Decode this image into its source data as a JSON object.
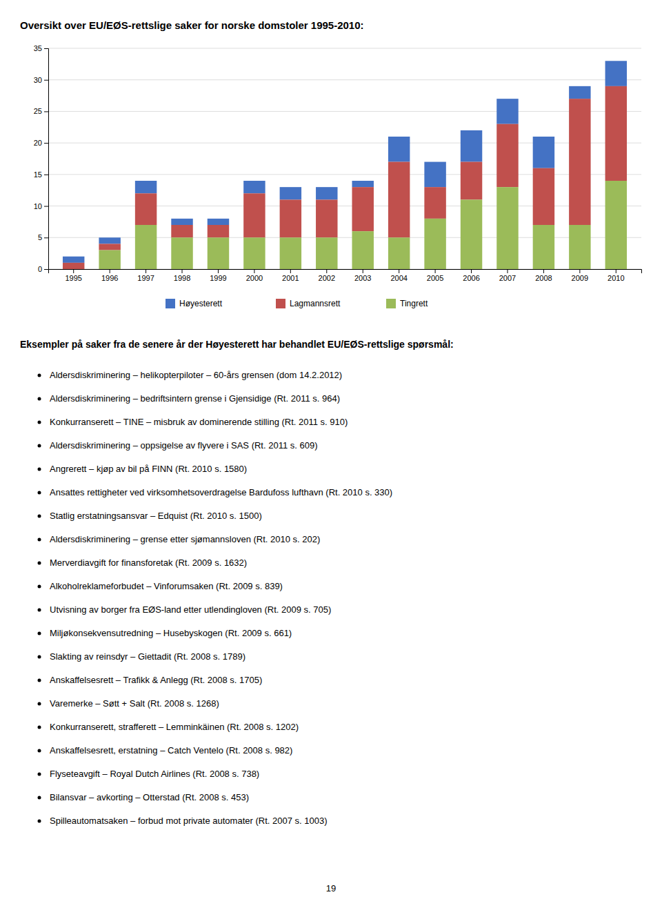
{
  "chart_data": {
    "type": "bar",
    "stacked": true,
    "title": "Oversikt over EU/EØS-rettslige saker for norske domstoler 1995-2010:",
    "categories": [
      "1995",
      "1996",
      "1997",
      "1998",
      "1999",
      "2000",
      "2001",
      "2002",
      "2003",
      "2004",
      "2005",
      "2006",
      "2007",
      "2008",
      "2009",
      "2010"
    ],
    "series": [
      {
        "name": "Høyesterett",
        "color": "#4472C4",
        "values": [
          1,
          1,
          2,
          1,
          1,
          2,
          2,
          2,
          1,
          4,
          4,
          5,
          4,
          5,
          2,
          4
        ]
      },
      {
        "name": "Lagmannsrett",
        "color": "#C0504D",
        "values": [
          1,
          1,
          5,
          2,
          2,
          7,
          6,
          6,
          7,
          12,
          5,
          6,
          10,
          9,
          20,
          15
        ]
      },
      {
        "name": "Tingrett",
        "color": "#9BBB59",
        "values": [
          0,
          3,
          7,
          5,
          5,
          5,
          5,
          5,
          6,
          5,
          8,
          11,
          13,
          7,
          7,
          14
        ]
      }
    ],
    "ylim": [
      0,
      35
    ],
    "yticks": [
      0,
      5,
      10,
      15,
      20,
      25,
      30,
      35
    ],
    "grid": true,
    "legend": "bottom"
  },
  "section_title": "Eksempler på saker fra de senere år der Høyesterett har behandlet EU/EØS-rettslige spørsmål:",
  "bullet_items": [
    "Aldersdiskriminering – helikopterpiloter – 60-års grensen (dom 14.2.2012)",
    "Aldersdiskriminering – bedriftsintern grense i Gjensidige (Rt. 2011 s. 964)",
    "Konkurranserett – TINE – misbruk av dominerende stilling  (Rt. 2011 s. 910)",
    "Aldersdiskriminering – oppsigelse av flyvere i SAS (Rt. 2011 s. 609)",
    "Angrerett – kjøp av bil på FINN (Rt. 2010 s. 1580)",
    "Ansattes rettigheter ved virksomhetsoverdragelse Bardufoss lufthavn (Rt. 2010 s. 330)",
    "Statlig erstatningsansvar – Edquist (Rt. 2010 s. 1500)",
    "Aldersdiskriminering – grense etter sjømannsloven (Rt. 2010 s. 202)",
    "Merverdiavgift for finansforetak (Rt. 2009 s. 1632)",
    "Alkoholreklameforbudet – Vinforumsaken (Rt. 2009 s. 839)",
    "Utvisning av borger fra EØS-land etter utlendingloven (Rt. 2009 s. 705)",
    "Miljøkonsekvensutredning – Husebyskogen (Rt. 2009 s. 661)",
    "Slakting av reinsdyr – Giettadit (Rt. 2008 s. 1789)",
    "Anskaffelsesrett – Trafikk & Anlegg (Rt. 2008 s. 1705)",
    "Varemerke – Søtt + Salt (Rt. 2008 s. 1268)",
    "Konkurranserett, strafferett – Lemminkäinen (Rt. 2008 s. 1202)",
    "Anskaffelsesrett, erstatning – Catch Ventelo (Rt. 2008 s. 982)",
    "Flyseteavgift – Royal Dutch Airlines (Rt. 2008 s. 738)",
    "Bilansvar – avkorting – Otterstad (Rt. 2008 s. 453)",
    "Spilleautomatsaken – forbud mot private automater (Rt. 2007 s. 1003)"
  ],
  "page_number": "19"
}
